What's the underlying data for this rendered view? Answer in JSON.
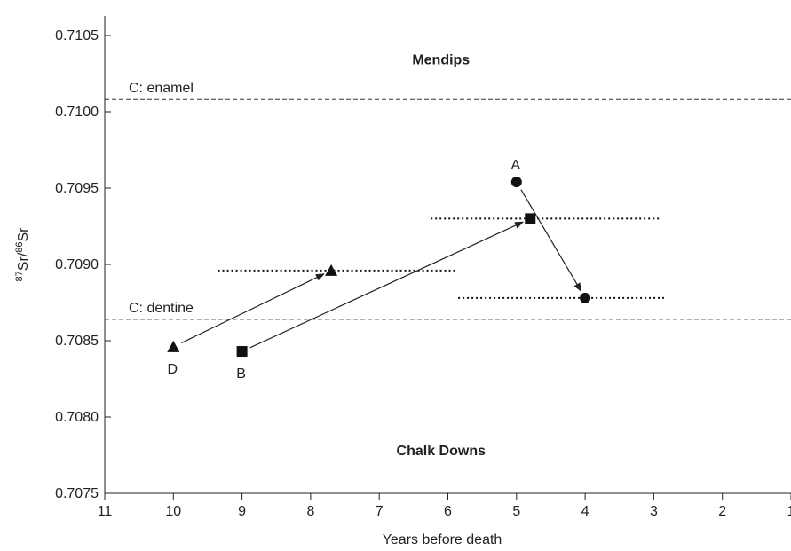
{
  "chart_data": {
    "type": "scatter",
    "title": "",
    "xlabel": "Years before death",
    "ylabel_parts": {
      "iso1": "87",
      "el1": "Sr/",
      "iso2": "86",
      "el2": "Sr"
    },
    "xlim": [
      11,
      1
    ],
    "ylim": [
      0.7075,
      0.7105
    ],
    "x_reversed": true,
    "x_ticks": [
      11,
      10,
      9,
      8,
      7,
      6,
      5,
      4,
      3,
      2,
      1
    ],
    "y_ticks": [
      0.7075,
      0.708,
      0.7085,
      0.709,
      0.7095,
      0.71,
      0.7105
    ],
    "x_tick_labels": [
      "11",
      "10",
      "9",
      "8",
      "7",
      "6",
      "5",
      "4",
      "3",
      "2",
      "1"
    ],
    "y_tick_labels": [
      "0.7075",
      "0.7080",
      "0.7085",
      "0.7090",
      "0.7095",
      "0.7100",
      "0.7105"
    ],
    "grid": false,
    "reference_lines": [
      {
        "label": "C: enamel",
        "y": 0.71008
      },
      {
        "label": "C: dentine",
        "y": 0.70864
      }
    ],
    "region_labels": [
      {
        "text": "Mendips",
        "x": 6.1,
        "y": 0.71031
      },
      {
        "text": "Chalk Downs",
        "x": 6.1,
        "y": 0.70775
      }
    ],
    "individuals": [
      {
        "id": "A",
        "marker": "circle",
        "points": [
          {
            "x": 5.0,
            "y": 0.70954
          },
          {
            "x": 4.0,
            "y": 0.70878
          }
        ],
        "error_bar": {
          "y": 0.70878,
          "x_range": [
            5.85,
            2.85
          ]
        }
      },
      {
        "id": "B",
        "marker": "square",
        "points": [
          {
            "x": 9.0,
            "y": 0.70843
          },
          {
            "x": 4.8,
            "y": 0.7093
          }
        ],
        "error_bar": {
          "y": 0.7093,
          "x_range": [
            6.25,
            2.9
          ]
        }
      },
      {
        "id": "D",
        "marker": "triangle",
        "points": [
          {
            "x": 10.0,
            "y": 0.70846
          },
          {
            "x": 7.7,
            "y": 0.70896
          }
        ],
        "error_bar": {
          "y": 0.70896,
          "x_range": [
            9.35,
            5.9
          ]
        }
      }
    ]
  }
}
